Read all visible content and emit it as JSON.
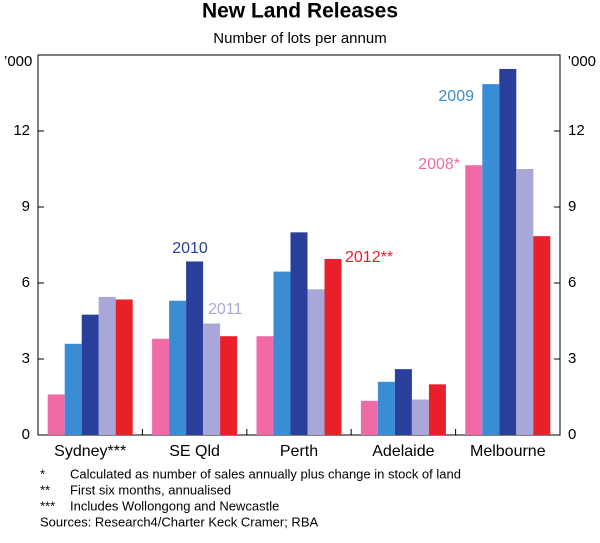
{
  "chart_data": {
    "type": "bar",
    "title": "New Land Releases",
    "subtitle": "Number of lots per annum",
    "y_unit": "’000",
    "categories": [
      "Sydney***",
      "SE Qld",
      "Perth",
      "Adelaide",
      "Melbourne"
    ],
    "series": [
      {
        "name": "2008*",
        "color": "#f06aa8",
        "values": [
          1.6,
          3.8,
          3.9,
          1.35,
          10.65
        ]
      },
      {
        "name": "2009",
        "color": "#3a8dd4",
        "values": [
          3.6,
          5.3,
          6.45,
          2.1,
          13.85
        ]
      },
      {
        "name": "2010",
        "color": "#28409c",
        "values": [
          4.75,
          6.85,
          8.0,
          2.6,
          14.45
        ]
      },
      {
        "name": "2011",
        "color": "#a9a7d7",
        "values": [
          5.45,
          4.4,
          5.75,
          1.4,
          10.5
        ]
      },
      {
        "name": "2012**",
        "color": "#e8202a",
        "values": [
          5.35,
          3.9,
          6.95,
          2.0,
          7.85
        ]
      }
    ],
    "ylim": [
      0,
      15
    ],
    "yticks": [
      0,
      3,
      6,
      9,
      12
    ],
    "y2lim": [
      0,
      15
    ],
    "y2ticks": [
      0,
      3,
      6,
      9,
      12
    ],
    "notes": [
      {
        "marker": "*",
        "text": "Calculated as number of sales annually plus change in stock of land"
      },
      {
        "marker": "**",
        "text": "First six months, annualised"
      },
      {
        "marker": "***",
        "text": "Includes Wollongong and Newcastle"
      }
    ],
    "source": "Sources: Research4/Charter Keck Cramer; RBA"
  }
}
